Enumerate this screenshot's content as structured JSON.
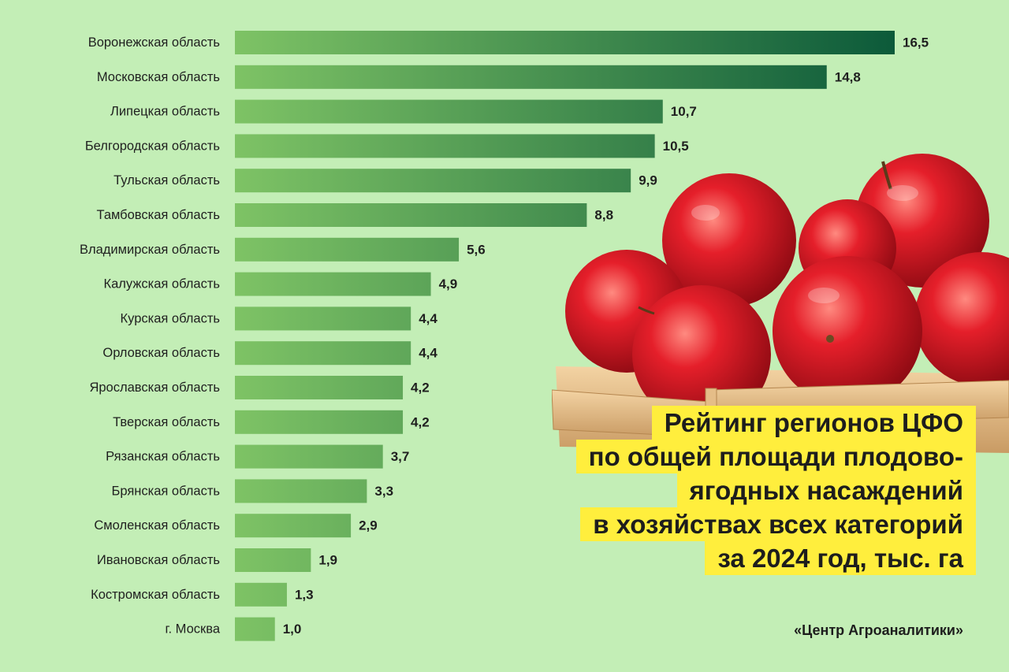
{
  "chart_data": {
    "type": "bar",
    "orientation": "horizontal",
    "categories": [
      "Воронежская область",
      "Московская область",
      "Липецкая область",
      "Белгородская область",
      "Тульская область",
      "Тамбовская область",
      "Владимирская область",
      "Калужская область",
      "Курская область",
      "Орловская область",
      "Ярославская область",
      "Тверская область",
      "Рязанская область",
      "Брянская область",
      "Смоленская область",
      "Ивановская область",
      "Костромская область",
      "г. Москва"
    ],
    "values": [
      16.5,
      14.8,
      10.7,
      10.5,
      9.9,
      8.8,
      5.6,
      4.9,
      4.4,
      4.4,
      4.2,
      4.2,
      3.7,
      3.3,
      2.9,
      1.9,
      1.3,
      1.0
    ],
    "value_labels": [
      "16,5",
      "14,8",
      "10,7",
      "10,5",
      "9,9",
      "8,8",
      "5,6",
      "4,9",
      "4,4",
      "4,4",
      "4,2",
      "4,2",
      "3,7",
      "3,3",
      "2,9",
      "1,9",
      "1,3",
      "1,0"
    ],
    "title_lines": [
      "Рейтинг регионов ЦФО",
      "по общей площади плодово-",
      "ягодных насаждений",
      "в хозяйствах всех категорий",
      "за 2024 год, тыс. га"
    ],
    "source": "«Центр Агроаналитики»",
    "grid": false,
    "legend": "none",
    "colors": {
      "background": "#c3eeb6",
      "bar_light": "#7ec365",
      "bar_dark": "#0c5a3a",
      "title_highlight": "#ffee3d"
    }
  }
}
